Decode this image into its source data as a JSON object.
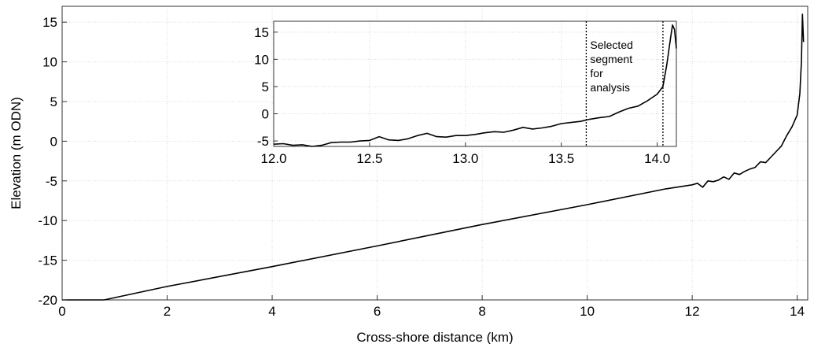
{
  "chart_data": [
    {
      "type": "line",
      "xlabel": "Cross-shore distance (km)",
      "ylabel": "Elevation (m ODN)",
      "xlim": [
        0,
        14.2
      ],
      "ylim": [
        -20,
        17
      ],
      "x_ticks": [
        0,
        2,
        4,
        6,
        8,
        10,
        12,
        14
      ],
      "y_ticks": [
        -20,
        -15,
        -10,
        -5,
        0,
        5,
        10,
        15
      ],
      "grid": true,
      "series": [
        {
          "x": [
            0,
            0.8,
            2,
            4,
            6,
            8,
            10,
            11.5,
            12.0,
            12.1,
            12.2,
            12.3,
            12.4,
            12.5,
            12.6,
            12.7,
            12.8,
            12.9,
            13.0,
            13.1,
            13.2,
            13.3,
            13.4,
            13.5,
            13.6,
            13.7,
            13.8,
            13.9,
            14.0,
            14.05,
            14.08,
            14.1,
            14.12
          ],
          "y": [
            -20,
            -20,
            -18.3,
            -15.8,
            -13.2,
            -10.5,
            -8.0,
            -6.0,
            -5.5,
            -5.3,
            -5.8,
            -5.0,
            -5.1,
            -4.9,
            -4.5,
            -4.8,
            -4.0,
            -4.2,
            -3.8,
            -3.5,
            -3.3,
            -2.6,
            -2.7,
            -2.0,
            -1.3,
            -0.6,
            0.7,
            1.8,
            3.3,
            6.0,
            10.0,
            16.0,
            12.5
          ]
        }
      ]
    },
    {
      "type": "line",
      "xlim": [
        12.0,
        14.1
      ],
      "ylim": [
        -6,
        17
      ],
      "x_ticks": [
        12.0,
        12.5,
        13.0,
        13.5,
        14.0
      ],
      "x_tick_labels": [
        "12.0",
        "12.5",
        "13.0",
        "13.5",
        "14.0"
      ],
      "y_ticks": [
        -5,
        0,
        5,
        10,
        15
      ],
      "grid": true,
      "annotation": "Selected segment for analysis",
      "annotation_lines": [
        "Selected",
        "segment",
        "for",
        "analysis"
      ],
      "selected_segment": [
        13.63,
        14.03
      ],
      "series": [
        {
          "x": [
            12.0,
            12.05,
            12.1,
            12.15,
            12.2,
            12.25,
            12.3,
            12.35,
            12.4,
            12.45,
            12.5,
            12.55,
            12.6,
            12.65,
            12.7,
            12.75,
            12.8,
            12.85,
            12.9,
            12.95,
            13.0,
            13.05,
            13.1,
            13.15,
            13.2,
            13.25,
            13.3,
            13.35,
            13.4,
            13.45,
            13.5,
            13.55,
            13.6,
            13.65,
            13.7,
            13.75,
            13.8,
            13.85,
            13.9,
            13.95,
            14.0,
            14.03,
            14.05,
            14.07,
            14.08,
            14.09,
            14.1
          ],
          "y": [
            -5.6,
            -5.5,
            -5.8,
            -5.7,
            -6.0,
            -5.8,
            -5.3,
            -5.2,
            -5.2,
            -5.0,
            -4.9,
            -4.2,
            -4.8,
            -4.9,
            -4.6,
            -4.0,
            -3.6,
            -4.2,
            -4.3,
            -4.0,
            -4.0,
            -3.8,
            -3.5,
            -3.3,
            -3.4,
            -3.0,
            -2.5,
            -2.8,
            -2.6,
            -2.3,
            -1.8,
            -1.6,
            -1.4,
            -1.0,
            -0.7,
            -0.5,
            0.3,
            1.0,
            1.4,
            2.4,
            3.6,
            5.0,
            9.0,
            14.0,
            16.3,
            15.5,
            12.0
          ]
        }
      ]
    }
  ]
}
